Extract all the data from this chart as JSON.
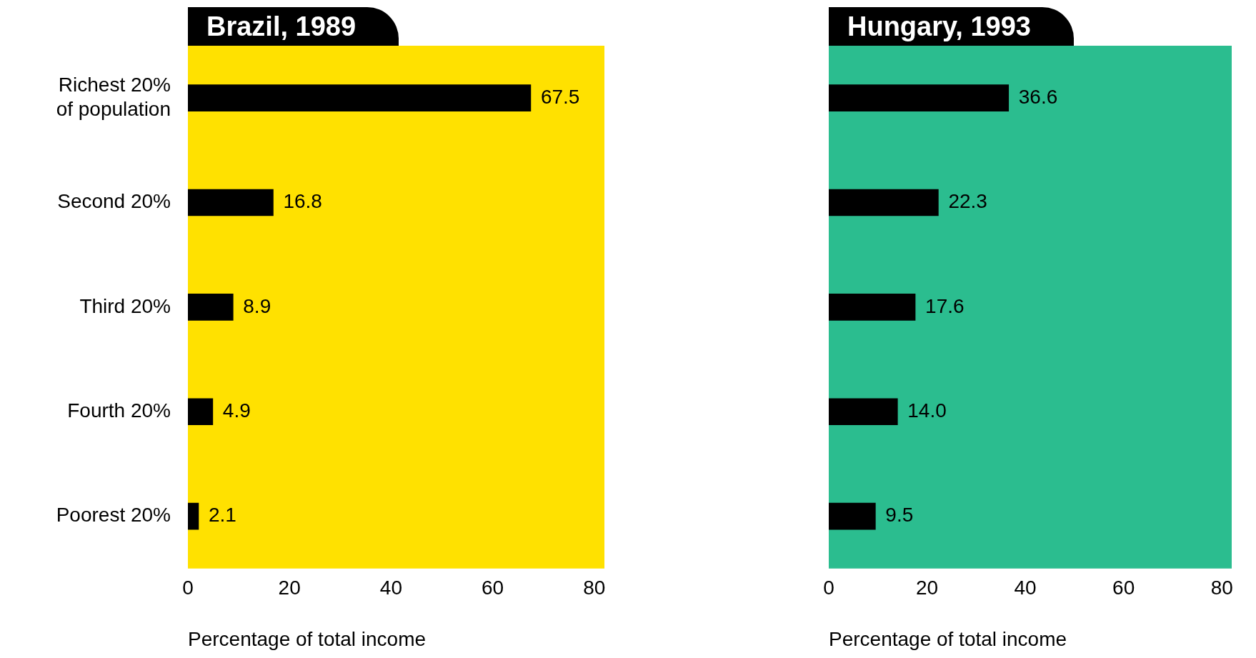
{
  "chart_data": [
    {
      "type": "bar",
      "orientation": "horizontal",
      "title": "Brazil, 1989",
      "xlabel": "Percentage of total income",
      "categories": [
        "Richest 20% of population",
        "Second 20%",
        "Third 20%",
        "Fourth 20%",
        "Poorest 20%"
      ],
      "series": [
        {
          "color": "#000000",
          "values": [
            67.5,
            16.8,
            8.9,
            4.9,
            2.1
          ],
          "value_labels": [
            "67.5",
            "16.8",
            "8.9",
            "4.9",
            "2.1"
          ]
        }
      ],
      "xlim": [
        0,
        82
      ],
      "xticks": [
        0,
        20,
        40,
        60,
        80
      ],
      "grid": false,
      "legend": false,
      "bands": [
        {
          "axis": "x",
          "from": 0,
          "to": 82,
          "color": "#ffe100"
        }
      ]
    },
    {
      "type": "bar",
      "orientation": "horizontal",
      "title": "Hungary, 1993",
      "xlabel": "Percentage of total income",
      "categories": [
        null,
        null,
        null,
        null,
        null
      ],
      "series": [
        {
          "color": "#000000",
          "values": [
            36.6,
            22.3,
            17.6,
            14.0,
            9.5
          ],
          "value_labels": [
            "36.6",
            "22.3",
            "17.6",
            "14.0",
            "9.5"
          ]
        }
      ],
      "xlim": [
        0,
        82
      ],
      "xticks": [
        0,
        20,
        40,
        60,
        80
      ],
      "grid": false,
      "legend": false,
      "tick_labels": "x",
      "bands": [
        {
          "axis": "x",
          "from": 0,
          "to": 82,
          "color": "#2bbd8f"
        }
      ]
    }
  ]
}
